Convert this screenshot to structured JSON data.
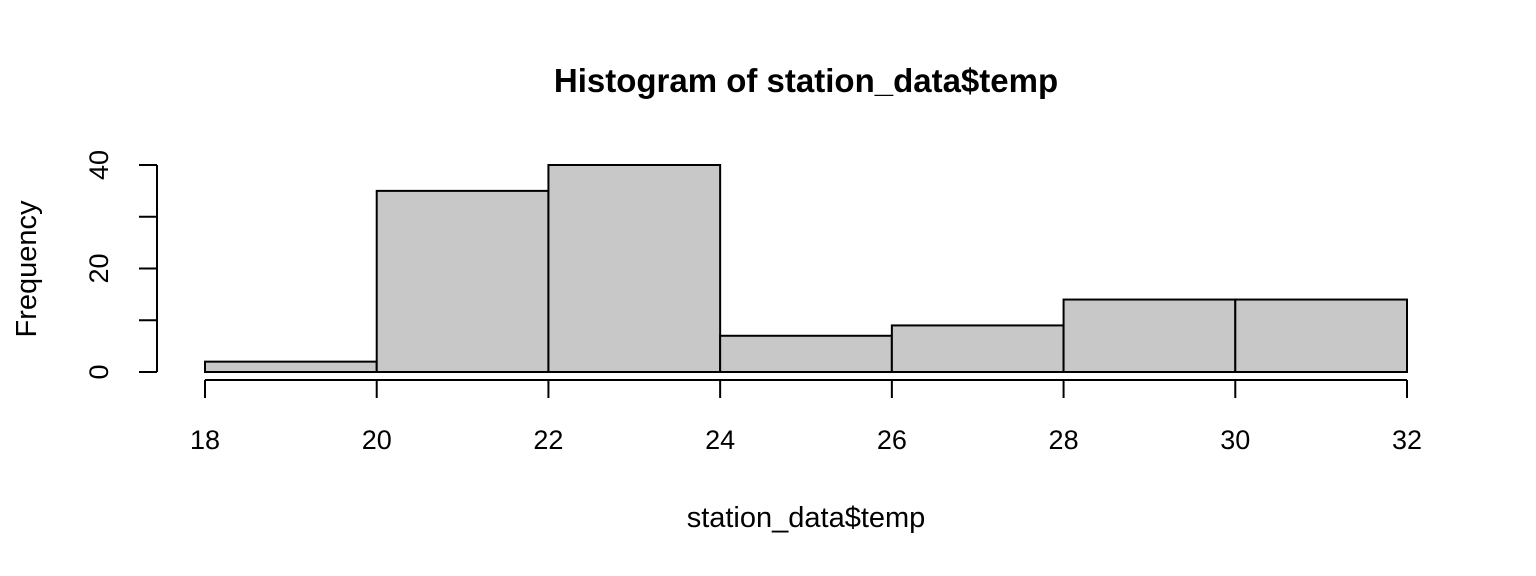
{
  "chart_data": {
    "type": "bar",
    "title": "Histogram of station_data$temp",
    "xlabel": "station_data$temp",
    "ylabel": "Frequency",
    "bin_edges": [
      18,
      20,
      22,
      24,
      26,
      28,
      30,
      32
    ],
    "values": [
      2,
      35,
      40,
      7,
      9,
      14,
      14
    ],
    "xlim": [
      18,
      32
    ],
    "ylim": [
      0,
      40
    ],
    "x_ticks": [
      18,
      20,
      22,
      24,
      26,
      28,
      30,
      32
    ],
    "y_ticks": [
      0,
      10,
      20,
      30,
      40
    ],
    "y_tick_labels": [
      "0",
      "",
      "20",
      "",
      "40"
    ],
    "grid": false,
    "legend": "none",
    "bar_color": "#c8c8c8",
    "edge_color": "#000000"
  }
}
